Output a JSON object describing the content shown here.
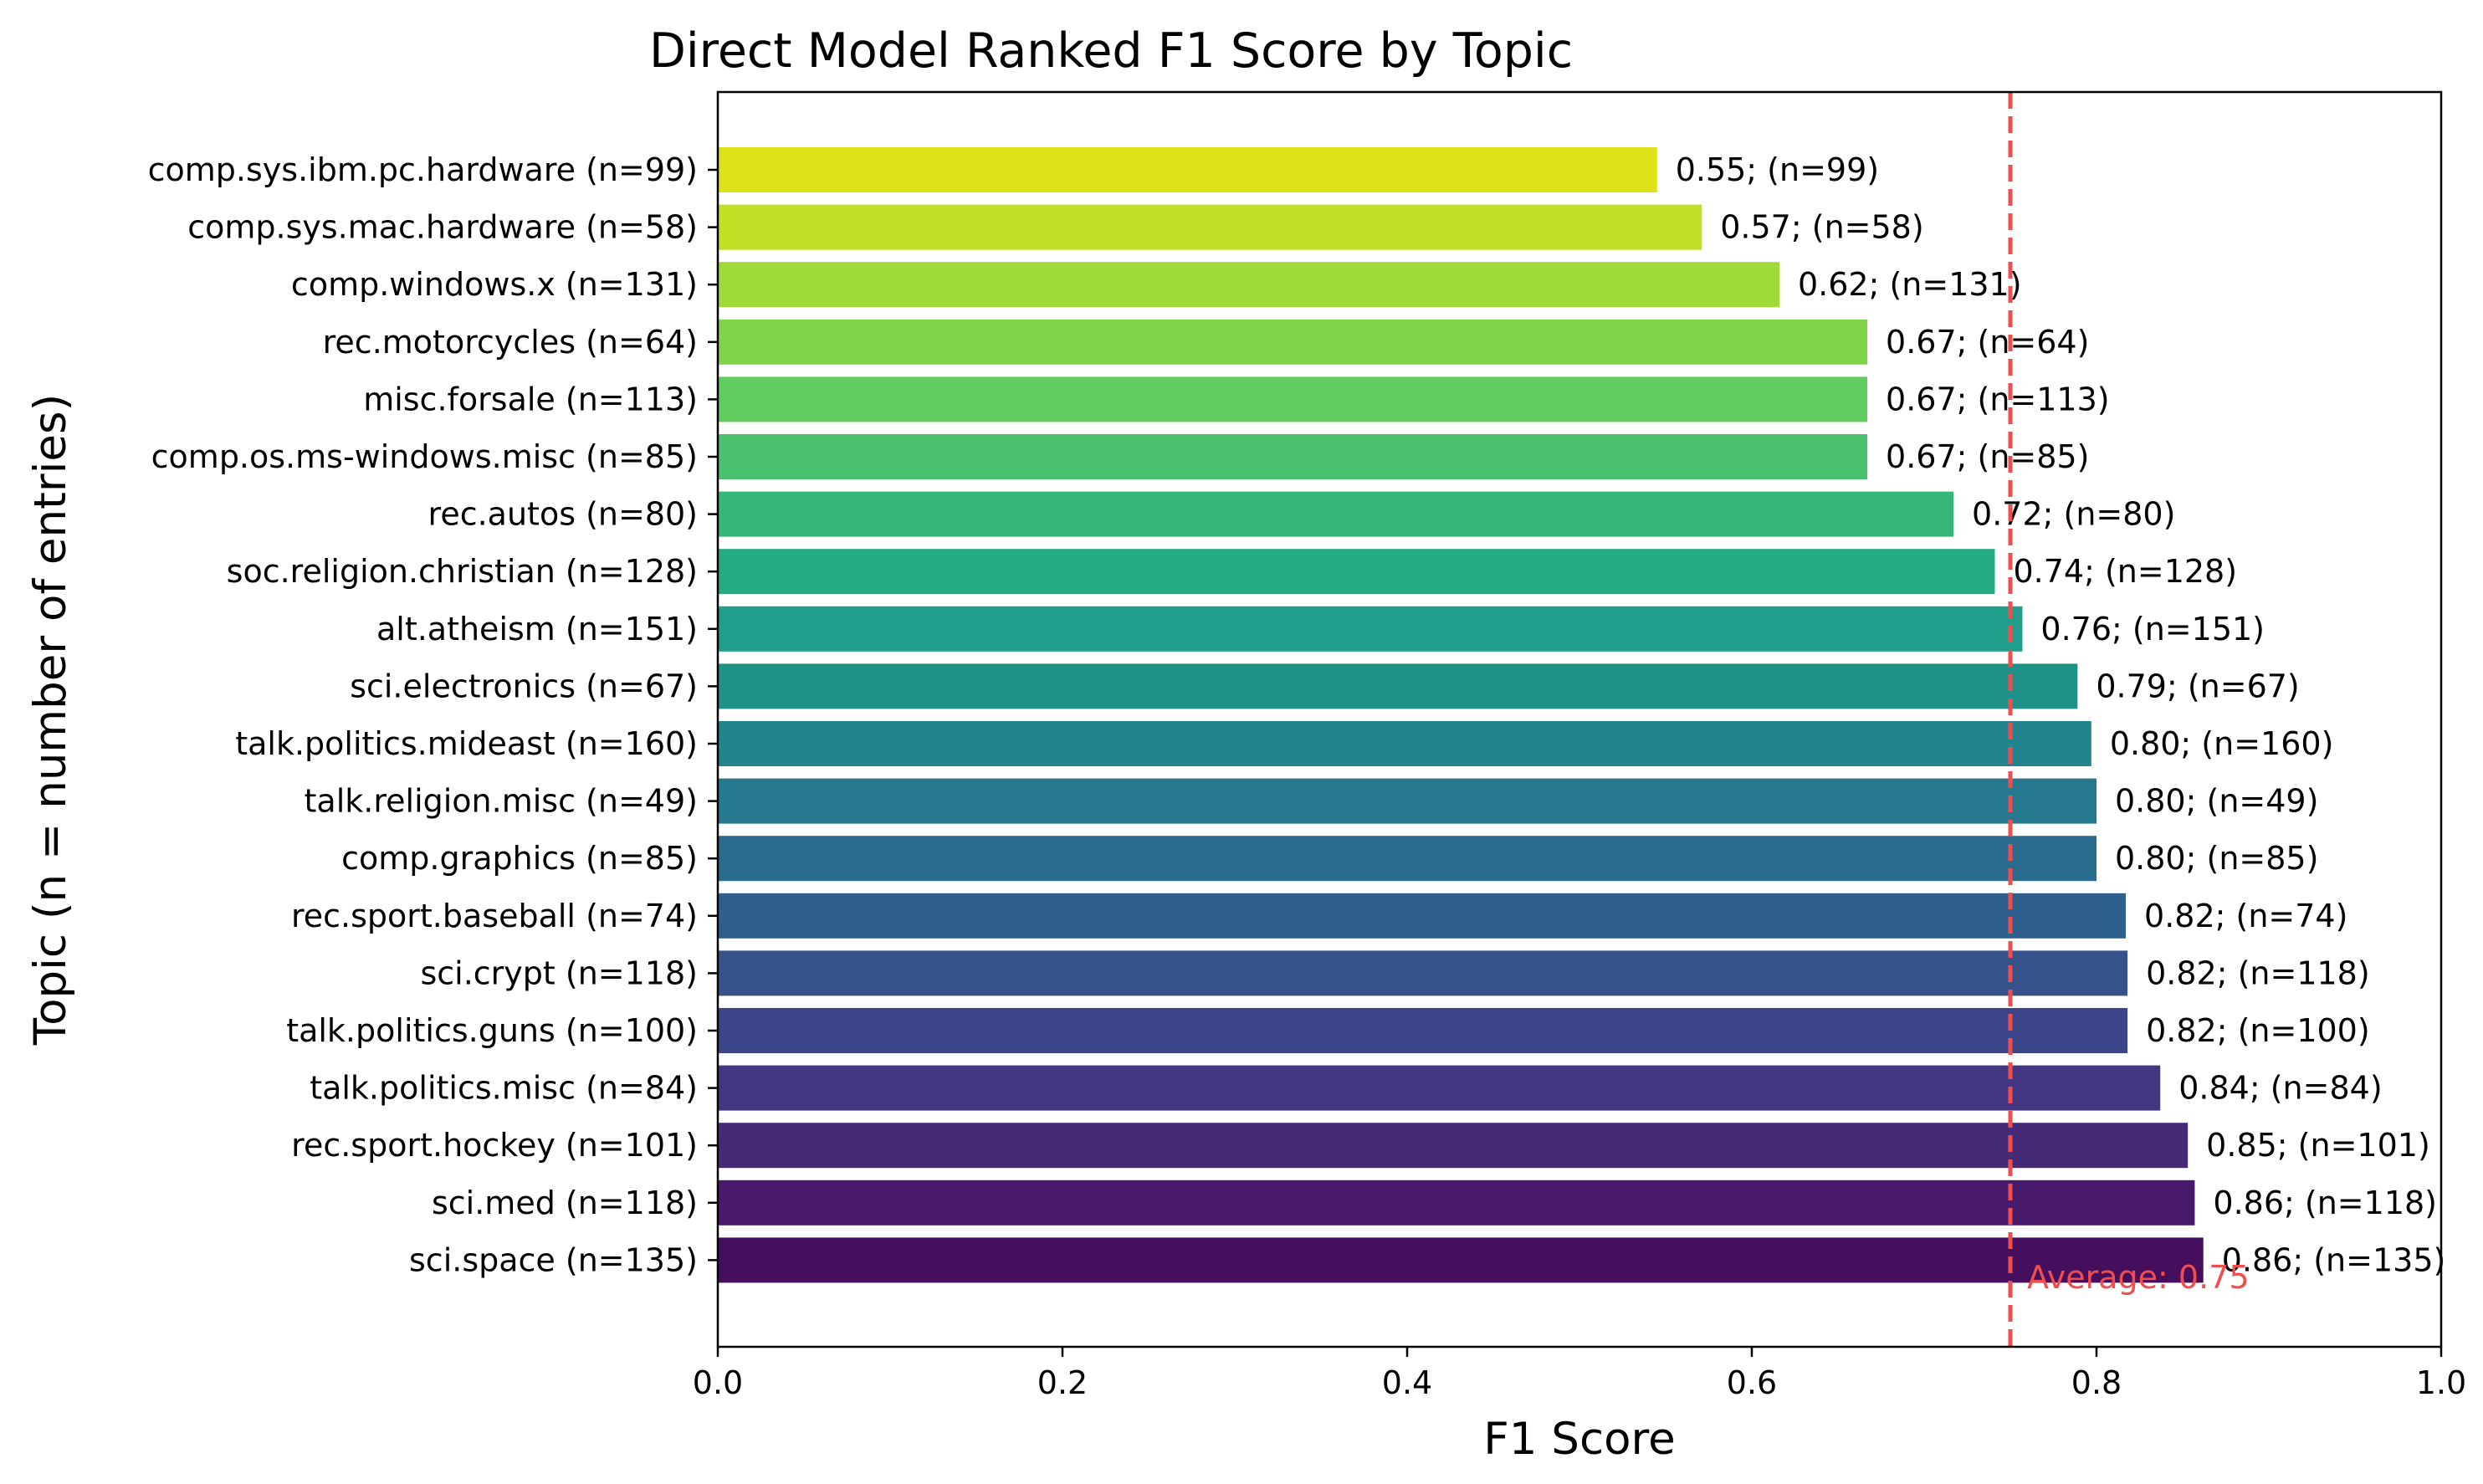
{
  "chart_data": {
    "type": "bar",
    "orientation": "horizontal",
    "title": "Direct Model Ranked F1 Score by Topic",
    "xlabel": "F1 Score",
    "ylabel": "Topic (n = number of entries)",
    "xlim": [
      0,
      1
    ],
    "xticks": [
      "0.0",
      "0.2",
      "0.4",
      "0.6",
      "0.8",
      "1.0"
    ],
    "xtick_values": [
      0,
      0.2,
      0.4,
      0.6,
      0.8,
      1.0
    ],
    "grid": false,
    "categories": [
      "comp.sys.ibm.pc.hardware (n=99)",
      "comp.sys.mac.hardware (n=58)",
      "comp.windows.x (n=131)",
      "rec.motorcycles (n=64)",
      "misc.forsale (n=113)",
      "comp.os.ms-windows.misc (n=85)",
      "rec.autos (n=80)",
      "soc.religion.christian (n=128)",
      "alt.atheism (n=151)",
      "sci.electronics (n=67)",
      "talk.politics.mideast (n=160)",
      "talk.religion.misc (n=49)",
      "comp.graphics (n=85)",
      "rec.sport.baseball (n=74)",
      "sci.crypt (n=118)",
      "talk.politics.guns (n=100)",
      "talk.politics.misc (n=84)",
      "rec.sport.hockey (n=101)",
      "sci.med (n=118)",
      "sci.space (n=135)"
    ],
    "values": [
      0.545,
      0.571,
      0.616,
      0.667,
      0.667,
      0.667,
      0.717,
      0.741,
      0.757,
      0.789,
      0.797,
      0.8,
      0.8,
      0.817,
      0.818,
      0.818,
      0.837,
      0.853,
      0.857,
      0.862
    ],
    "data_labels": [
      "0.55; (n=99)",
      "0.57; (n=58)",
      "0.62; (n=131)",
      "0.67; (n=64)",
      "0.67; (n=113)",
      "0.67; (n=85)",
      "0.72; (n=80)",
      "0.74; (n=128)",
      "0.76; (n=151)",
      "0.79; (n=67)",
      "0.80; (n=160)",
      "0.80; (n=49)",
      "0.80; (n=85)",
      "0.82; (n=74)",
      "0.82; (n=118)",
      "0.82; (n=100)",
      "0.84; (n=84)",
      "0.85; (n=101)",
      "0.86; (n=118)",
      "0.86; (n=135)"
    ],
    "colors": [
      "#dde318",
      "#c0df25",
      "#a0da39",
      "#80d34b",
      "#62cb5f",
      "#4ac26d",
      "#35b779",
      "#25ab82",
      "#1f9e89",
      "#1f9188",
      "#22848e",
      "#26788e",
      "#2a6b8e",
      "#2f608d",
      "#35528b",
      "#3c4587",
      "#423780",
      "#462a78",
      "#481a6c",
      "#450f5e"
    ],
    "reference_line": {
      "value": 0.75,
      "label": "Average: 0.75",
      "color": "#f24d4d",
      "style": "dashed"
    }
  }
}
